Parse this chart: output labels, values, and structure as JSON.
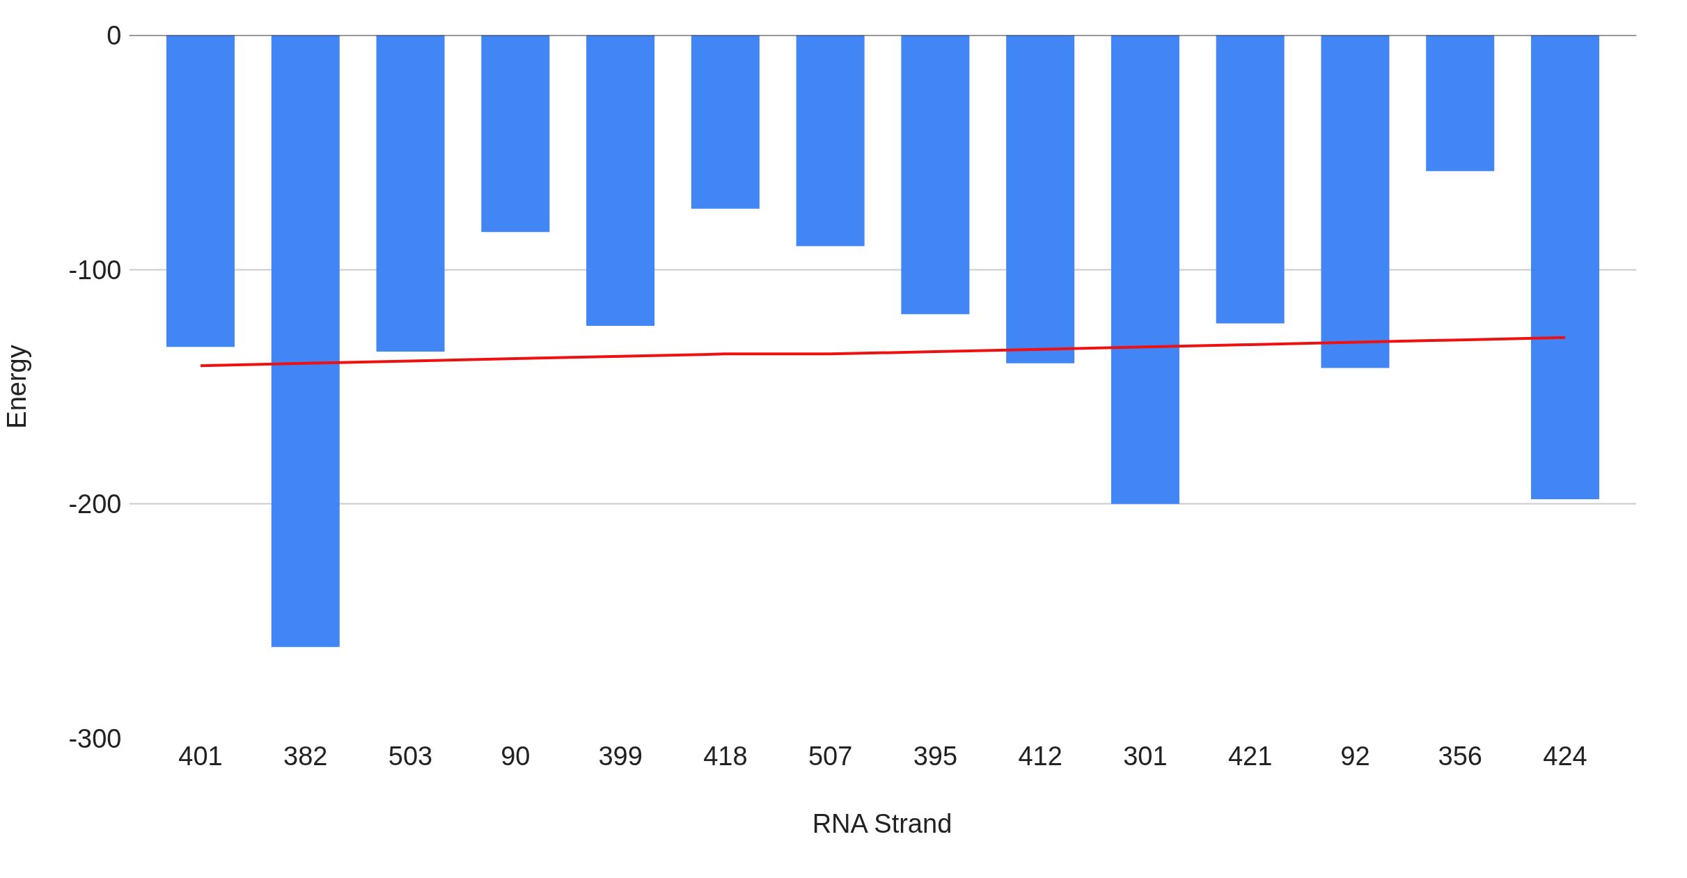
{
  "chart_data": {
    "type": "bar",
    "xlabel": "RNA Strand",
    "ylabel": "Energy",
    "categories": [
      "401",
      "382",
      "503",
      "90",
      "399",
      "418",
      "507",
      "395",
      "412",
      "301",
      "421",
      "92",
      "356",
      "424"
    ],
    "series": [
      {
        "color": "#4285f4",
        "values": [
          -133,
          -261,
          -135,
          -84,
          -124,
          -74,
          -90,
          -119,
          -140,
          -200,
          -123,
          -142,
          -58,
          -198
        ]
      },
      {
        "type": "line",
        "color": "#ee1111",
        "values": [
          -141,
          -140,
          -139,
          -138,
          -137,
          -136,
          -136,
          -135,
          -134,
          -133,
          -132,
          -131,
          -130,
          -129
        ]
      }
    ],
    "ylim": [
      -300,
      0
    ],
    "yticks": [
      -300,
      -200,
      -100,
      0
    ],
    "grid": "y",
    "ref_lines": [
      {
        "axis": "y",
        "value": 0,
        "color": "#333333"
      }
    ]
  }
}
